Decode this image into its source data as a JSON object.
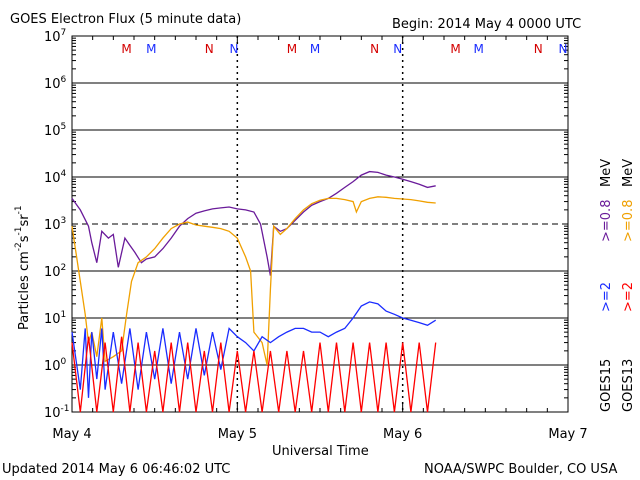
{
  "header": {
    "title": "GOES Electron Flux (5 minute data)",
    "begin": "Begin: 2014 May 4 0000 UTC"
  },
  "footer": {
    "updated": "Updated 2014 May  6 06:46:02 UTC",
    "credit": "NOAA/SWPC Boulder, CO USA"
  },
  "axes": {
    "ylabel_main": "Particles cm",
    "ylabel_parts": [
      "Particles cm",
      "-2",
      "s",
      "-1",
      "sr",
      "-1"
    ],
    "xlabel": "Universal Time"
  },
  "legend": {
    "goes15": "GOES15",
    "goes13": "GOES13",
    "g15_ge2": ">=2",
    "g15_ge08": ">=0.8",
    "g13_ge2": ">=2",
    "g13_ge08": ">=0.8",
    "unit": "MeV"
  },
  "colors": {
    "g15_ge08": "#6a1b9a",
    "g13_ge08": "#f0a000",
    "g15_ge2": "#1a2cff",
    "g13_ge2": "#ff0000",
    "m_label": "#d40000",
    "n_label_red": "#d40000",
    "n_label_blue": "#1a2cff"
  },
  "chart_data": {
    "type": "line",
    "title": "GOES Electron Flux (5 minute data)",
    "xlabel": "Universal Time",
    "ylabel": "Particles cm-2 s-1 sr-1",
    "yscale": "log",
    "ylim": [
      0.1,
      10000000
    ],
    "xlim_days": [
      0,
      3
    ],
    "x_ticks": [
      "May 4",
      "May 5",
      "May 6",
      "May 7"
    ],
    "y_ticks": [
      "10-1",
      "100",
      "101",
      "102",
      "103",
      "104",
      "105",
      "106",
      "107"
    ],
    "threshold": 1000,
    "markers": [
      {
        "label": "M",
        "time_day": 0.33,
        "color": "red"
      },
      {
        "label": "M",
        "time_day": 0.48,
        "color": "blue"
      },
      {
        "label": "N",
        "time_day": 0.83,
        "color": "red"
      },
      {
        "label": "N",
        "time_day": 0.98,
        "color": "blue"
      },
      {
        "label": "M",
        "time_day": 1.33,
        "color": "red"
      },
      {
        "label": "M",
        "time_day": 1.47,
        "color": "blue"
      },
      {
        "label": "N",
        "time_day": 1.83,
        "color": "red"
      },
      {
        "label": "N",
        "time_day": 1.97,
        "color": "blue"
      },
      {
        "label": "M",
        "time_day": 2.32,
        "color": "red"
      },
      {
        "label": "M",
        "time_day": 2.46,
        "color": "blue"
      },
      {
        "label": "N",
        "time_day": 2.82,
        "color": "red"
      },
      {
        "label": "N",
        "time_day": 2.97,
        "color": "blue"
      }
    ],
    "series": [
      {
        "name": "GOES15 >=0.8 MeV",
        "color": "#6a1b9a",
        "points": [
          [
            0.0,
            3500
          ],
          [
            0.05,
            2000
          ],
          [
            0.1,
            900
          ],
          [
            0.12,
            400
          ],
          [
            0.15,
            150
          ],
          [
            0.18,
            700
          ],
          [
            0.22,
            500
          ],
          [
            0.25,
            600
          ],
          [
            0.28,
            120
          ],
          [
            0.32,
            500
          ],
          [
            0.35,
            350
          ],
          [
            0.38,
            250
          ],
          [
            0.42,
            150
          ],
          [
            0.45,
            180
          ],
          [
            0.5,
            200
          ],
          [
            0.55,
            300
          ],
          [
            0.6,
            500
          ],
          [
            0.65,
            900
          ],
          [
            0.7,
            1300
          ],
          [
            0.75,
            1700
          ],
          [
            0.8,
            1900
          ],
          [
            0.85,
            2100
          ],
          [
            0.9,
            2200
          ],
          [
            0.95,
            2300
          ],
          [
            1.0,
            2100
          ],
          [
            1.05,
            2000
          ],
          [
            1.1,
            1800
          ],
          [
            1.14,
            1000
          ],
          [
            1.18,
            200
          ],
          [
            1.2,
            80
          ],
          [
            1.22,
            900
          ],
          [
            1.26,
            700
          ],
          [
            1.3,
            800
          ],
          [
            1.35,
            1200
          ],
          [
            1.4,
            1800
          ],
          [
            1.45,
            2500
          ],
          [
            1.5,
            3000
          ],
          [
            1.55,
            3500
          ],
          [
            1.6,
            4500
          ],
          [
            1.65,
            6000
          ],
          [
            1.7,
            8000
          ],
          [
            1.75,
            11000
          ],
          [
            1.8,
            13000
          ],
          [
            1.85,
            12500
          ],
          [
            1.9,
            11000
          ],
          [
            1.95,
            10000
          ],
          [
            2.0,
            9000
          ],
          [
            2.05,
            8000
          ],
          [
            2.1,
            7000
          ],
          [
            2.15,
            6000
          ],
          [
            2.2,
            6500
          ]
        ]
      },
      {
        "name": "GOES13 >=0.8 MeV",
        "color": "#f0a000",
        "points": [
          [
            0.0,
            900
          ],
          [
            0.05,
            60
          ],
          [
            0.08,
            12
          ],
          [
            0.1,
            3
          ],
          [
            0.12,
            5
          ],
          [
            0.15,
            1.5
          ],
          [
            0.18,
            10
          ],
          [
            0.2,
            1.2
          ],
          [
            0.25,
            1.5
          ],
          [
            0.3,
            2
          ],
          [
            0.33,
            12
          ],
          [
            0.36,
            60
          ],
          [
            0.4,
            150
          ],
          [
            0.45,
            200
          ],
          [
            0.5,
            300
          ],
          [
            0.55,
            500
          ],
          [
            0.6,
            800
          ],
          [
            0.65,
            1000
          ],
          [
            0.7,
            1100
          ],
          [
            0.75,
            950
          ],
          [
            0.8,
            900
          ],
          [
            0.85,
            850
          ],
          [
            0.9,
            800
          ],
          [
            0.95,
            700
          ],
          [
            1.0,
            500
          ],
          [
            1.05,
            200
          ],
          [
            1.08,
            100
          ],
          [
            1.1,
            5
          ],
          [
            1.15,
            3
          ],
          [
            1.18,
            1
          ],
          [
            1.2,
            40
          ],
          [
            1.22,
            900
          ],
          [
            1.26,
            600
          ],
          [
            1.3,
            800
          ],
          [
            1.35,
            1300
          ],
          [
            1.4,
            2000
          ],
          [
            1.45,
            2700
          ],
          [
            1.5,
            3200
          ],
          [
            1.55,
            3500
          ],
          [
            1.6,
            3500
          ],
          [
            1.65,
            3300
          ],
          [
            1.7,
            3000
          ],
          [
            1.72,
            1800
          ],
          [
            1.75,
            3000
          ],
          [
            1.8,
            3500
          ],
          [
            1.85,
            3800
          ],
          [
            1.9,
            3700
          ],
          [
            1.95,
            3500
          ],
          [
            2.0,
            3400
          ],
          [
            2.05,
            3300
          ],
          [
            2.1,
            3100
          ],
          [
            2.15,
            2900
          ],
          [
            2.2,
            2800
          ]
        ]
      },
      {
        "name": "GOES15 >=2 MeV",
        "color": "#1a2cff",
        "points": [
          [
            0.0,
            5
          ],
          [
            0.05,
            0.3
          ],
          [
            0.08,
            6
          ],
          [
            0.1,
            0.2
          ],
          [
            0.12,
            5
          ],
          [
            0.15,
            0.5
          ],
          [
            0.18,
            6
          ],
          [
            0.2,
            0.3
          ],
          [
            0.25,
            5
          ],
          [
            0.3,
            0.4
          ],
          [
            0.35,
            6
          ],
          [
            0.4,
            0.3
          ],
          [
            0.45,
            5
          ],
          [
            0.5,
            0.5
          ],
          [
            0.55,
            6
          ],
          [
            0.6,
            0.4
          ],
          [
            0.65,
            5
          ],
          [
            0.7,
            0.5
          ],
          [
            0.75,
            6
          ],
          [
            0.8,
            0.6
          ],
          [
            0.85,
            5
          ],
          [
            0.9,
            0.8
          ],
          [
            0.95,
            6
          ],
          [
            1.0,
            4
          ],
          [
            1.05,
            3
          ],
          [
            1.1,
            2
          ],
          [
            1.15,
            4
          ],
          [
            1.2,
            3
          ],
          [
            1.25,
            4
          ],
          [
            1.3,
            5
          ],
          [
            1.35,
            6
          ],
          [
            1.4,
            6
          ],
          [
            1.45,
            5
          ],
          [
            1.5,
            5
          ],
          [
            1.55,
            4
          ],
          [
            1.6,
            5
          ],
          [
            1.65,
            6
          ],
          [
            1.7,
            10
          ],
          [
            1.75,
            18
          ],
          [
            1.8,
            22
          ],
          [
            1.85,
            20
          ],
          [
            1.9,
            14
          ],
          [
            1.95,
            12
          ],
          [
            2.0,
            10
          ],
          [
            2.05,
            9
          ],
          [
            2.1,
            8
          ],
          [
            2.15,
            7
          ],
          [
            2.2,
            9
          ]
        ]
      },
      {
        "name": "GOES13 >=2 MeV",
        "color": "#ff0000",
        "points": [
          [
            0.0,
            3
          ],
          [
            0.05,
            0.1
          ],
          [
            0.1,
            4
          ],
          [
            0.15,
            0.1
          ],
          [
            0.2,
            3
          ],
          [
            0.25,
            0.1
          ],
          [
            0.3,
            4
          ],
          [
            0.35,
            0.1
          ],
          [
            0.4,
            3
          ],
          [
            0.45,
            0.1
          ],
          [
            0.5,
            2
          ],
          [
            0.55,
            0.1
          ],
          [
            0.6,
            3
          ],
          [
            0.65,
            0.1
          ],
          [
            0.7,
            3
          ],
          [
            0.75,
            0.1
          ],
          [
            0.8,
            2
          ],
          [
            0.85,
            0.1
          ],
          [
            0.9,
            3
          ],
          [
            0.95,
            0.1
          ],
          [
            1.0,
            2
          ],
          [
            1.05,
            0.1
          ],
          [
            1.1,
            2
          ],
          [
            1.15,
            0.1
          ],
          [
            1.2,
            2
          ],
          [
            1.25,
            0.1
          ],
          [
            1.3,
            2
          ],
          [
            1.35,
            0.1
          ],
          [
            1.4,
            2
          ],
          [
            1.45,
            0.1
          ],
          [
            1.5,
            3
          ],
          [
            1.55,
            0.1
          ],
          [
            1.6,
            3
          ],
          [
            1.65,
            0.1
          ],
          [
            1.7,
            3
          ],
          [
            1.75,
            0.1
          ],
          [
            1.8,
            3
          ],
          [
            1.85,
            0.1
          ],
          [
            1.9,
            3
          ],
          [
            1.95,
            0.1
          ],
          [
            2.0,
            3
          ],
          [
            2.05,
            0.1
          ],
          [
            2.1,
            3
          ],
          [
            2.15,
            0.1
          ],
          [
            2.2,
            3
          ]
        ]
      }
    ]
  }
}
